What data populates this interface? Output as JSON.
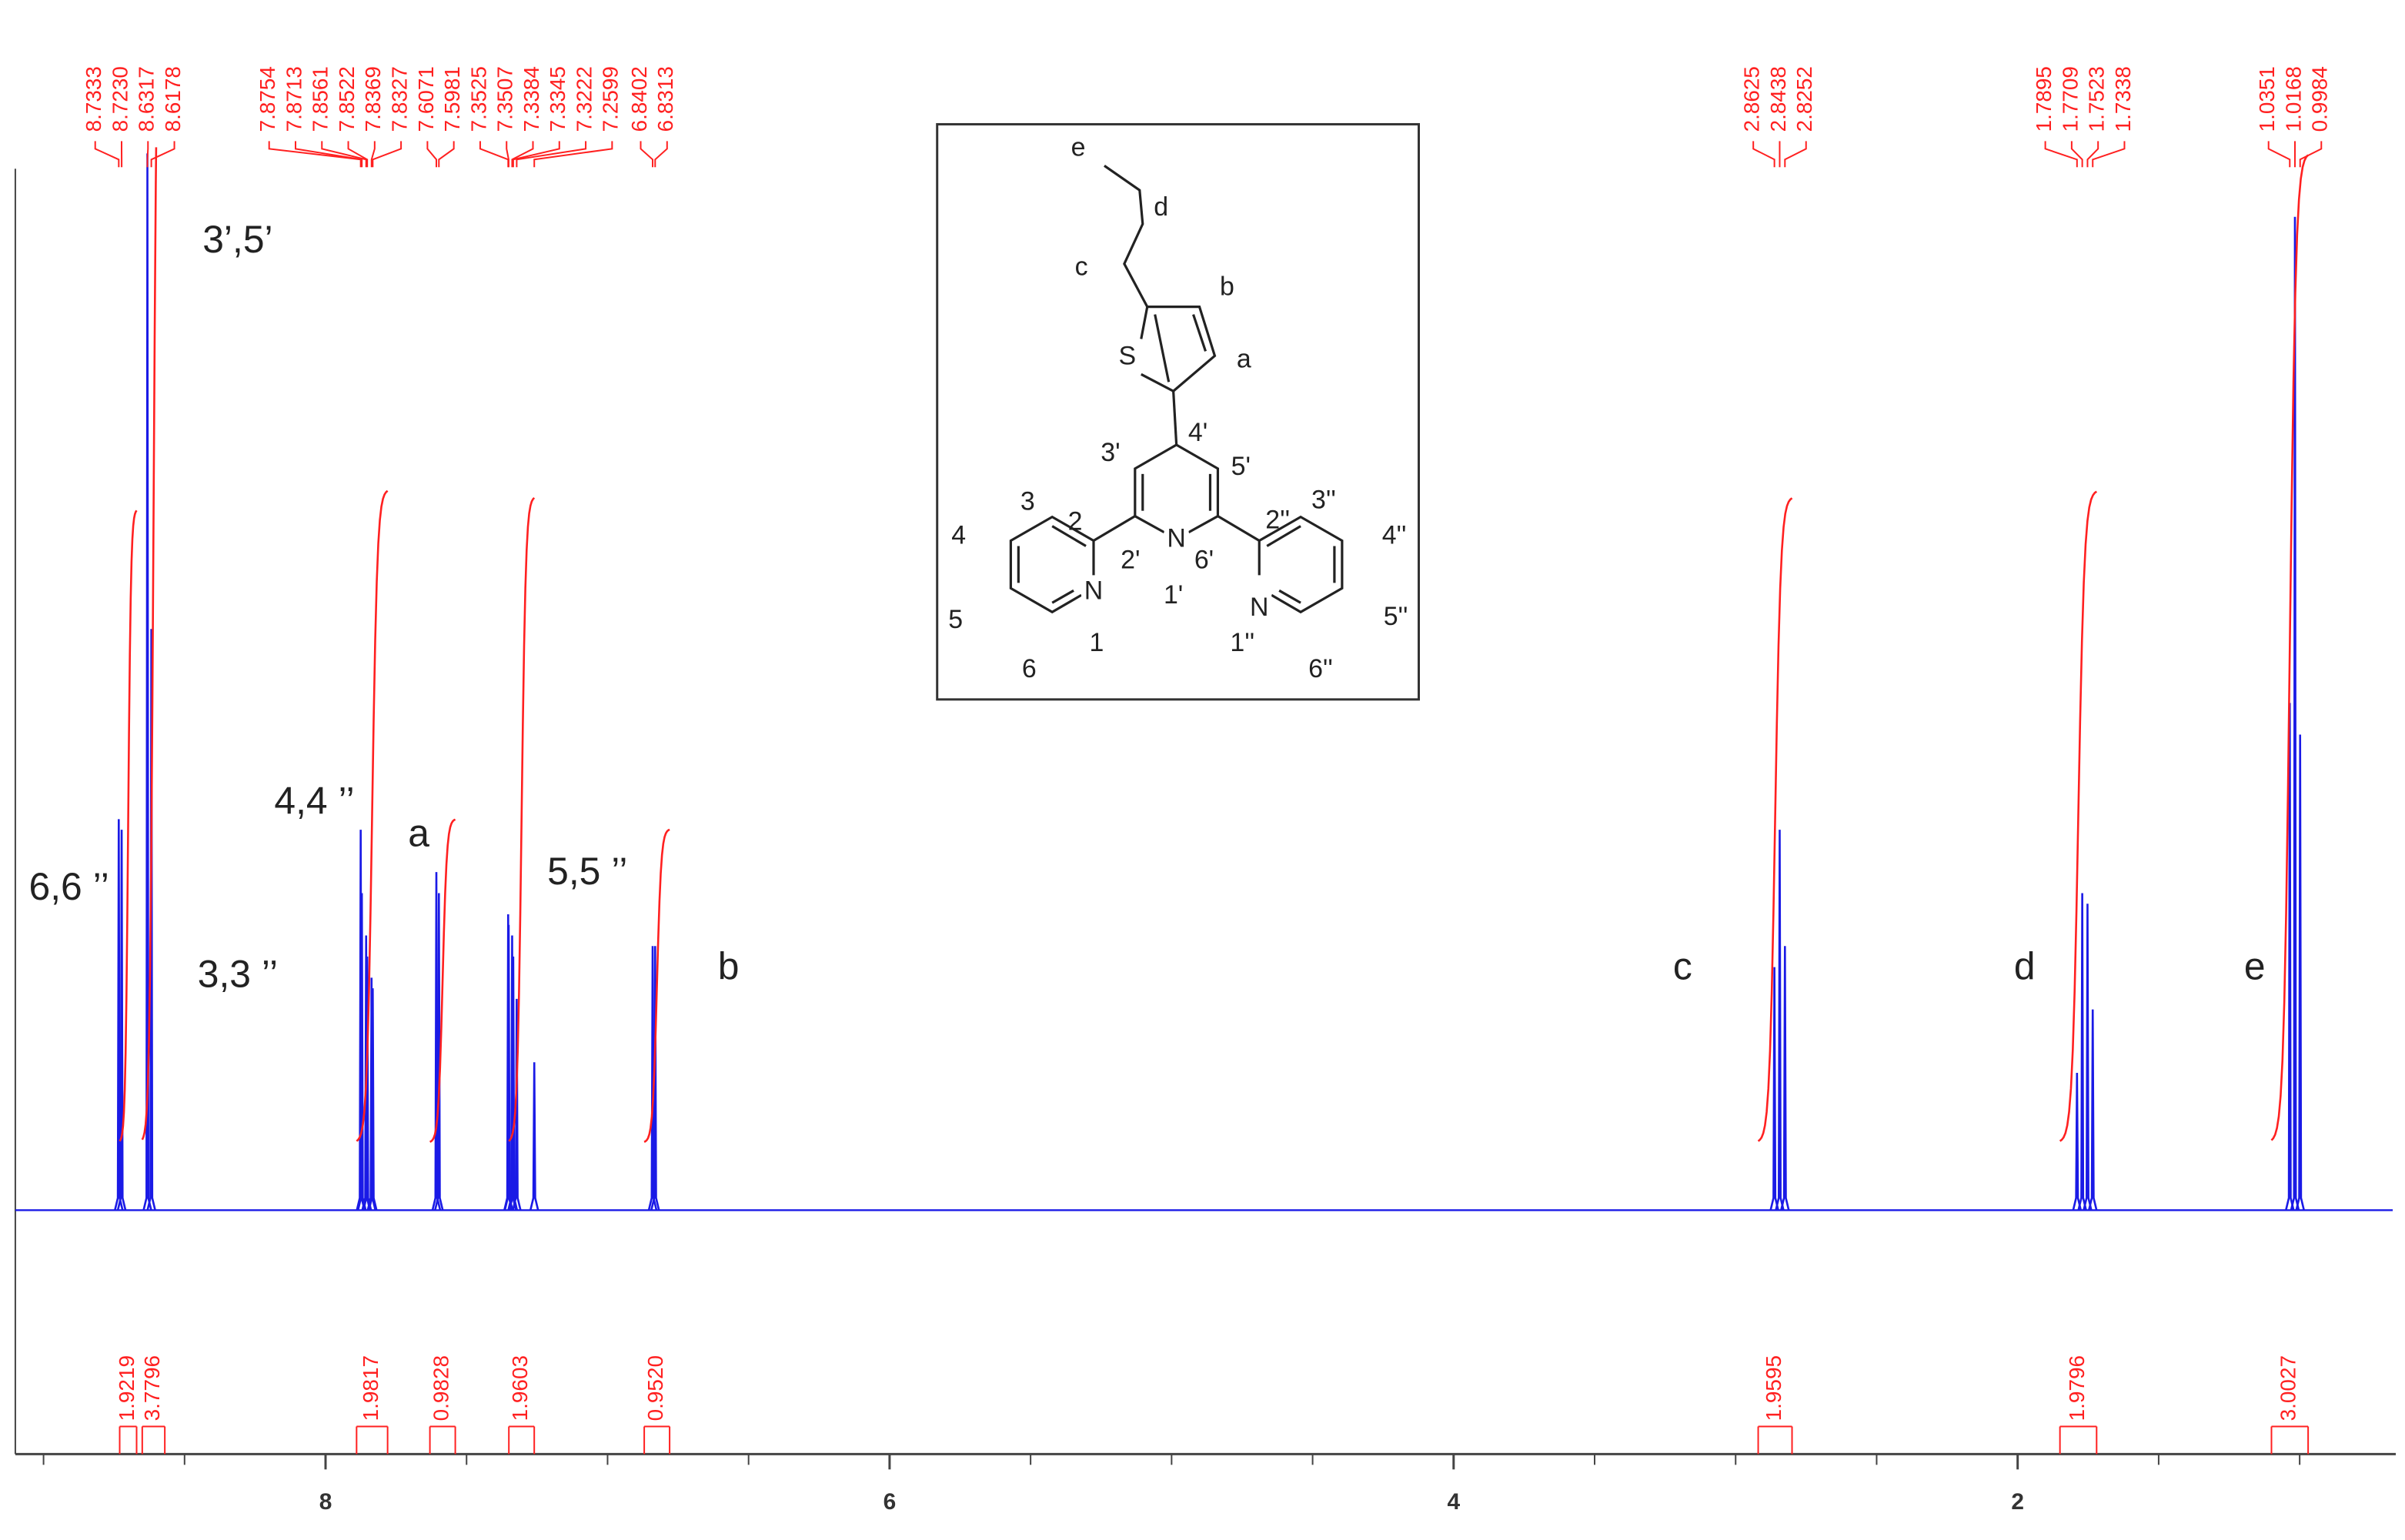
{
  "chart_data": {
    "type": "nmr",
    "xlim": [
      9.1,
      0.67
    ],
    "xticks": [
      8,
      6,
      4,
      2
    ],
    "xminorticks": [
      9,
      8.5,
      7.5,
      7,
      6.5,
      5.5,
      5,
      4.5,
      3.5,
      3,
      2.5,
      1.5,
      1
    ],
    "ylim": [
      0,
      100
    ],
    "spectrum_color": "#1a1ae6",
    "label_color": "#ff2020",
    "peaks": {
      "x": [
        8.7333,
        8.723,
        8.6317,
        8.6178,
        7.8754,
        7.8713,
        7.8561,
        7.8522,
        7.8369,
        7.8327,
        7.6071,
        7.5981,
        7.3525,
        7.3507,
        7.3384,
        7.3345,
        7.3222,
        7.2599,
        6.8402,
        6.8313,
        2.8625,
        2.8438,
        2.8252,
        1.7895,
        1.7709,
        1.7523,
        1.7338,
        1.0351,
        1.0168,
        0.9984
      ],
      "x_labels": [
        "8.7333",
        "8.7230",
        "8.6317",
        "8.6178",
        "7.8754",
        "7.8713",
        "7.8561",
        "7.8522",
        "7.8369",
        "7.8327",
        "7.6071",
        "7.5981",
        "7.3525",
        "7.3507",
        "7.3384",
        "7.3345",
        "7.3222",
        "7.2599",
        "6.8402",
        "6.8313",
        "2.8625",
        "2.8438",
        "2.8252",
        "1.7895",
        "1.7709",
        "1.7523",
        "1.7338",
        "1.0351",
        "1.0168",
        "0.9984"
      ],
      "values": [
        37,
        36,
        100,
        55,
        36,
        30,
        26,
        24,
        22,
        21,
        32,
        30,
        28,
        27,
        26,
        24,
        20,
        14,
        25,
        25,
        23,
        36,
        25,
        13,
        30,
        29,
        19,
        48,
        94,
        45
      ]
    },
    "integrals": {
      "values": [
        1.9219,
        3.7796,
        1.9817,
        0.9828,
        1.9603,
        0.952,
        1.9595,
        1.9796,
        3.0027
      ],
      "value_labels": [
        "1.9219",
        "3.7796",
        "1.9817",
        "0.9828",
        "1.9603",
        "0.9520",
        "1.9595",
        "1.9796",
        "3.0027"
      ],
      "ranges": [
        [
          8.73,
          8.67
        ],
        [
          8.65,
          8.57
        ],
        [
          7.89,
          7.78
        ],
        [
          7.63,
          7.54
        ],
        [
          7.35,
          7.26
        ],
        [
          6.87,
          6.78
        ],
        [
          2.92,
          2.8
        ],
        [
          1.85,
          1.72
        ],
        [
          1.1,
          0.97
        ]
      ]
    },
    "annotations": [
      "3’,5’",
      "6,6 ’’",
      "3,3 ’’",
      "4,4 ’’",
      "a",
      "5,5 ’’",
      "b",
      "c",
      "d",
      "e"
    ],
    "structure": {
      "labels": [
        "e",
        "d",
        "c",
        "b",
        "a",
        "S",
        "3'",
        "4'",
        "5'",
        "3",
        "2",
        "2''",
        "3''",
        "4",
        "N",
        "2'",
        "6'",
        "N",
        "4''",
        "5",
        "1'",
        "1''",
        "5''",
        "6",
        "1",
        "6''",
        "N"
      ]
    }
  }
}
